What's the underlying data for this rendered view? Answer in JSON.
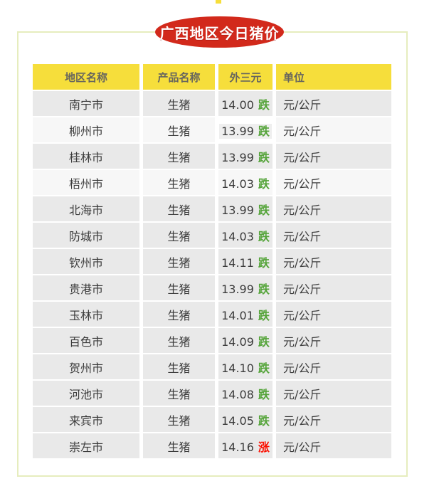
{
  "page": {
    "title_badge": "广西地区今日猪价"
  },
  "table": {
    "headers": [
      "地区名称",
      "产品名称",
      "外三元",
      "单位"
    ],
    "rows": [
      {
        "region": "南宁市",
        "product": "生猪",
        "price": "14.00",
        "trend": "跌",
        "trend_dir": "down",
        "unit": "元/公斤",
        "shade": "dark"
      },
      {
        "region": "柳州市",
        "product": "生猪",
        "price": "13.99",
        "trend": "跌",
        "trend_dir": "down",
        "unit": "元/公斤",
        "shade": "light",
        "price_highlight": true
      },
      {
        "region": "桂林市",
        "product": "生猪",
        "price": "13.99",
        "trend": "跌",
        "trend_dir": "down",
        "unit": "元/公斤",
        "shade": "dark"
      },
      {
        "region": "梧州市",
        "product": "生猪",
        "price": "14.03",
        "trend": "跌",
        "trend_dir": "down",
        "unit": "元/公斤",
        "shade": "light"
      },
      {
        "region": "北海市",
        "product": "生猪",
        "price": "13.99",
        "trend": "跌",
        "trend_dir": "down",
        "unit": "元/公斤",
        "shade": "dark"
      },
      {
        "region": "防城市",
        "product": "生猪",
        "price": "14.03",
        "trend": "跌",
        "trend_dir": "down",
        "unit": "元/公斤",
        "shade": "dark"
      },
      {
        "region": "钦州市",
        "product": "生猪",
        "price": "14.11",
        "trend": "跌",
        "trend_dir": "down",
        "unit": "元/公斤",
        "shade": "dark"
      },
      {
        "region": "贵港市",
        "product": "生猪",
        "price": "13.99",
        "trend": "跌",
        "trend_dir": "down",
        "unit": "元/公斤",
        "shade": "dark"
      },
      {
        "region": "玉林市",
        "product": "生猪",
        "price": "14.01",
        "trend": "跌",
        "trend_dir": "down",
        "unit": "元/公斤",
        "shade": "dark"
      },
      {
        "region": "百色市",
        "product": "生猪",
        "price": "14.09",
        "trend": "跌",
        "trend_dir": "down",
        "unit": "元/公斤",
        "shade": "dark"
      },
      {
        "region": "贺州市",
        "product": "生猪",
        "price": "14.10",
        "trend": "跌",
        "trend_dir": "down",
        "unit": "元/公斤",
        "shade": "dark"
      },
      {
        "region": "河池市",
        "product": "生猪",
        "price": "14.08",
        "trend": "跌",
        "trend_dir": "down",
        "unit": "元/公斤",
        "shade": "dark"
      },
      {
        "region": "来宾市",
        "product": "生猪",
        "price": "14.05",
        "trend": "跌",
        "trend_dir": "down",
        "unit": "元/公斤",
        "shade": "dark"
      },
      {
        "region": "崇左市",
        "product": "生猪",
        "price": "14.16",
        "trend": "涨",
        "trend_dir": "up",
        "unit": "元/公斤",
        "shade": "dark"
      }
    ]
  },
  "colors": {
    "accent_yellow": "#F6DE3B",
    "badge_red": "#D2291B",
    "trend_down_green": "#55A43A",
    "trend_up_red": "#FB0F00",
    "panel_border": "#E6EDBE",
    "row_dark": "#E9E9E9",
    "row_light": "#F7F7F7"
  }
}
